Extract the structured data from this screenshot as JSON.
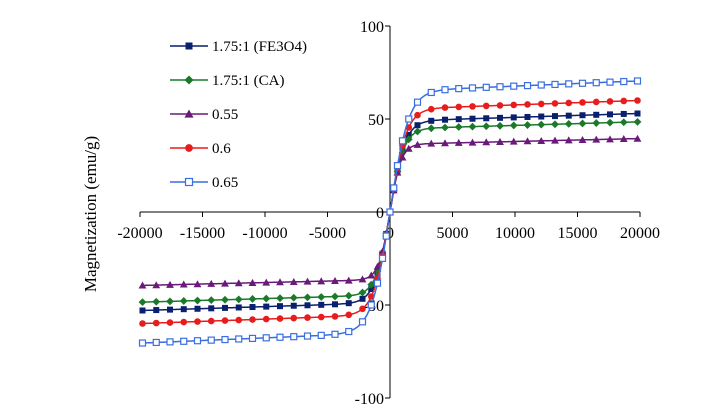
{
  "chart_data": {
    "type": "line",
    "title": "",
    "xlabel": "",
    "ylabel": "Magnetization (emu/g)",
    "xlim": [
      -20000,
      20000
    ],
    "ylim": [
      -100,
      100
    ],
    "x_ticks": [
      "-20000",
      "-15000",
      "-10000",
      "-5000",
      "0",
      "5000",
      "10000",
      "15000",
      "20000"
    ],
    "y_ticks": [
      "-100",
      "-50",
      "0",
      "50",
      "100"
    ],
    "grid": false,
    "legend_position": "top-left",
    "series": [
      {
        "name": "1.75:1 (FE3O4)",
        "color": "#0a1f6e",
        "marker": "square-filled",
        "ms": 53.0,
        "hk": 270,
        "x": [
          -19800,
          -18700,
          -17600,
          -16500,
          -15400,
          -14300,
          -13200,
          -12100,
          -11000,
          -9900,
          -8800,
          -7700,
          -6600,
          -5500,
          -4400,
          -3300,
          -2200,
          -1500,
          -1000,
          -600,
          -300,
          0,
          300,
          600,
          1000,
          1500,
          2200,
          3300,
          4400,
          5500,
          6600,
          7700,
          8800,
          9900,
          11000,
          12100,
          13200,
          14300,
          15400,
          16500,
          17600,
          18700,
          19800
        ]
      },
      {
        "name": "1.75:1 (CA)",
        "color": "#1a7a2a",
        "marker": "diamond-filled",
        "ms": 48.5,
        "hk": 250,
        "x": [
          -19800,
          -18700,
          -17600,
          -16500,
          -15400,
          -14300,
          -13200,
          -12100,
          -11000,
          -9900,
          -8800,
          -7700,
          -6600,
          -5500,
          -4400,
          -3300,
          -2200,
          -1500,
          -1000,
          -600,
          -300,
          0,
          300,
          600,
          1000,
          1500,
          2200,
          3300,
          4400,
          5500,
          6600,
          7700,
          8800,
          9900,
          11000,
          12100,
          13200,
          14300,
          15400,
          16500,
          17600,
          18700,
          19800
        ]
      },
      {
        "name": "0.55",
        "color": "#6a1a78",
        "marker": "triangle-filled",
        "ms": 39.5,
        "hk": 200,
        "x": [
          -19800,
          -18700,
          -17600,
          -16500,
          -15400,
          -14300,
          -13200,
          -12100,
          -11000,
          -9900,
          -8800,
          -7700,
          -6600,
          -5500,
          -4400,
          -3300,
          -2200,
          -1500,
          -1000,
          -600,
          -300,
          0,
          300,
          600,
          1000,
          1500,
          2200,
          3300,
          4400,
          5500,
          6600,
          7700,
          8800,
          9900,
          11000,
          12100,
          13200,
          14300,
          15400,
          16500,
          17600,
          18700,
          19800
        ]
      },
      {
        "name": "0.6",
        "color": "#e81c1c",
        "marker": "circle-filled",
        "ms": 60.0,
        "hk": 290,
        "x": [
          -19800,
          -18700,
          -17600,
          -16500,
          -15400,
          -14300,
          -13200,
          -12100,
          -11000,
          -9900,
          -8800,
          -7700,
          -6600,
          -5500,
          -4400,
          -3300,
          -2200,
          -1500,
          -1000,
          -600,
          -300,
          0,
          300,
          600,
          1000,
          1500,
          2200,
          3300,
          4400,
          5500,
          6600,
          7700,
          8800,
          9900,
          11000,
          12100,
          13200,
          14300,
          15400,
          16500,
          17600,
          18700,
          19800
        ]
      },
      {
        "name": "0.65",
        "color": "#3a6fe0",
        "marker": "square-open",
        "ms": 70.5,
        "hk": 330,
        "x": [
          -19800,
          -18700,
          -17600,
          -16500,
          -15400,
          -14300,
          -13200,
          -12100,
          -11000,
          -9900,
          -8800,
          -7700,
          -6600,
          -5500,
          -4400,
          -3300,
          -2200,
          -1500,
          -1000,
          -600,
          -300,
          0,
          300,
          600,
          1000,
          1500,
          2200,
          3300,
          4400,
          5500,
          6600,
          7700,
          8800,
          9900,
          11000,
          12100,
          13200,
          14300,
          15400,
          16500,
          17600,
          18700,
          19800
        ]
      }
    ]
  }
}
